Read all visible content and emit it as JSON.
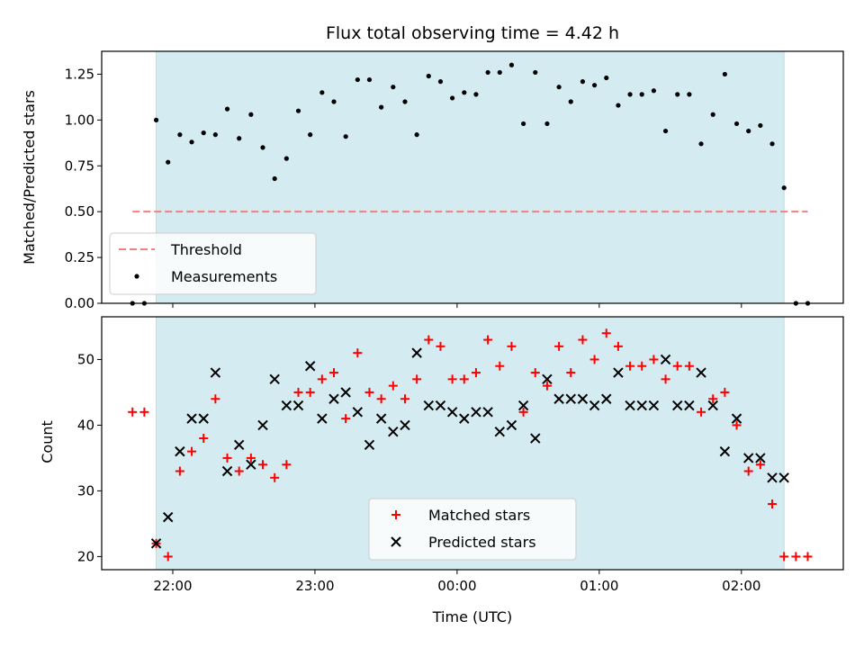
{
  "chart_data": [
    {
      "type": "scatter",
      "title": "Flux total observing time = 4.42 h",
      "xlabel": "",
      "ylabel": "Matched/Predicted stars",
      "ylim": [
        0,
        1.375
      ],
      "xlim": [
        "21:30",
        "02:43"
      ],
      "yticks": [
        "0.00",
        "0.25",
        "0.50",
        "0.75",
        "1.00",
        "1.25"
      ],
      "shaded_span": {
        "start": "21:53",
        "end": "02:18",
        "color": "#d4ebf1"
      },
      "threshold": {
        "name": "Threshold",
        "value": 0.5,
        "x_start": "21:43",
        "x_end": "02:28",
        "color": "#f08080"
      },
      "legend": {
        "placement": "lower-left"
      },
      "series": [
        {
          "name": "Measurements",
          "color": "#000000",
          "x": [
            "21:43",
            "21:48",
            "21:53",
            "21:58",
            "22:03",
            "22:08",
            "22:13",
            "22:18",
            "22:23",
            "22:28",
            "22:33",
            "22:38",
            "22:43",
            "22:48",
            "22:53",
            "22:58",
            "23:03",
            "23:08",
            "23:13",
            "23:18",
            "23:23",
            "23:28",
            "23:33",
            "23:38",
            "23:43",
            "23:48",
            "23:53",
            "23:58",
            "00:03",
            "00:08",
            "00:13",
            "00:18",
            "00:23",
            "00:28",
            "00:33",
            "00:38",
            "00:43",
            "00:48",
            "00:53",
            "00:58",
            "01:03",
            "01:08",
            "01:13",
            "01:18",
            "01:23",
            "01:28",
            "01:33",
            "01:38",
            "01:43",
            "01:48",
            "01:53",
            "01:58",
            "02:03",
            "02:08",
            "02:13",
            "02:18",
            "02:23",
            "02:28"
          ],
          "y": [
            0,
            0,
            1.0,
            0.77,
            0.92,
            0.88,
            0.93,
            0.92,
            1.06,
            0.9,
            1.03,
            0.85,
            0.68,
            0.79,
            1.05,
            0.92,
            1.15,
            1.1,
            0.91,
            1.22,
            1.22,
            1.07,
            1.18,
            1.1,
            0.92,
            1.24,
            1.21,
            1.12,
            1.15,
            1.14,
            1.26,
            1.26,
            1.3,
            0.98,
            1.26,
            0.98,
            1.18,
            1.1,
            1.21,
            1.19,
            1.23,
            1.08,
            1.14,
            1.14,
            1.16,
            0.94,
            1.14,
            1.14,
            0.87,
            1.03,
            1.25,
            0.98,
            0.94,
            0.97,
            0.87,
            0.63,
            0,
            0
          ]
        }
      ]
    },
    {
      "type": "scatter",
      "xlabel": "Time (UTC)",
      "ylabel": "Count",
      "ylim": [
        18,
        56.5
      ],
      "xlim": [
        "21:30",
        "02:43"
      ],
      "xticks": [
        "22:00",
        "23:00",
        "00:00",
        "01:00",
        "02:00"
      ],
      "yticks": [
        "20",
        "30",
        "40",
        "50"
      ],
      "shaded_span": {
        "start": "21:53",
        "end": "02:18",
        "color": "#d4ebf1"
      },
      "legend": {
        "placement": "bottom-center"
      },
      "series": [
        {
          "name": "Matched stars",
          "color": "#ff0000",
          "marker": "+",
          "x": [
            "21:43",
            "21:48",
            "21:53",
            "21:58",
            "22:03",
            "22:08",
            "22:13",
            "22:18",
            "22:23",
            "22:28",
            "22:33",
            "22:38",
            "22:43",
            "22:48",
            "22:53",
            "22:58",
            "23:03",
            "23:08",
            "23:13",
            "23:18",
            "23:23",
            "23:28",
            "23:33",
            "23:38",
            "23:43",
            "23:48",
            "23:53",
            "23:58",
            "00:03",
            "00:08",
            "00:13",
            "00:18",
            "00:23",
            "00:28",
            "00:33",
            "00:38",
            "00:43",
            "00:48",
            "00:53",
            "00:58",
            "01:03",
            "01:08",
            "01:13",
            "01:18",
            "01:23",
            "01:28",
            "01:33",
            "01:38",
            "01:43",
            "01:48",
            "01:53",
            "01:58",
            "02:03",
            "02:08",
            "02:13",
            "02:18",
            "02:23",
            "02:28"
          ],
          "y": [
            42,
            42,
            22,
            20,
            33,
            36,
            38,
            44,
            35,
            33,
            35,
            34,
            32,
            34,
            45,
            45,
            47,
            48,
            41,
            51,
            45,
            44,
            46,
            44,
            47,
            53,
            52,
            47,
            47,
            48,
            53,
            49,
            52,
            42,
            48,
            46,
            52,
            48,
            53,
            50,
            54,
            52,
            49,
            49,
            50,
            47,
            49,
            49,
            42,
            44,
            45,
            40,
            33,
            34,
            28,
            20,
            20,
            20
          ]
        },
        {
          "name": "Predicted stars",
          "color": "#000000",
          "marker": "x",
          "x": [
            "21:53",
            "21:58",
            "22:03",
            "22:08",
            "22:13",
            "22:18",
            "22:23",
            "22:28",
            "22:33",
            "22:38",
            "22:43",
            "22:48",
            "22:53",
            "22:58",
            "23:03",
            "23:08",
            "23:13",
            "23:18",
            "23:23",
            "23:28",
            "23:33",
            "23:38",
            "23:43",
            "23:48",
            "23:53",
            "23:58",
            "00:03",
            "00:08",
            "00:13",
            "00:18",
            "00:23",
            "00:28",
            "00:33",
            "00:38",
            "00:43",
            "00:48",
            "00:53",
            "00:58",
            "01:03",
            "01:08",
            "01:13",
            "01:18",
            "01:23",
            "01:28",
            "01:33",
            "01:38",
            "01:43",
            "01:48",
            "01:53",
            "01:58",
            "02:03",
            "02:08",
            "02:13",
            "02:18"
          ],
          "y": [
            22,
            26,
            36,
            41,
            41,
            48,
            33,
            37,
            34,
            40,
            47,
            43,
            43,
            49,
            41,
            44,
            45,
            42,
            37,
            41,
            39,
            40,
            51,
            43,
            43,
            42,
            41,
            42,
            42,
            39,
            40,
            43,
            38,
            47,
            44,
            44,
            44,
            43,
            44,
            48,
            43,
            43,
            43,
            50,
            43,
            43,
            48,
            43,
            36,
            41,
            35,
            35,
            32,
            32
          ]
        }
      ]
    }
  ]
}
